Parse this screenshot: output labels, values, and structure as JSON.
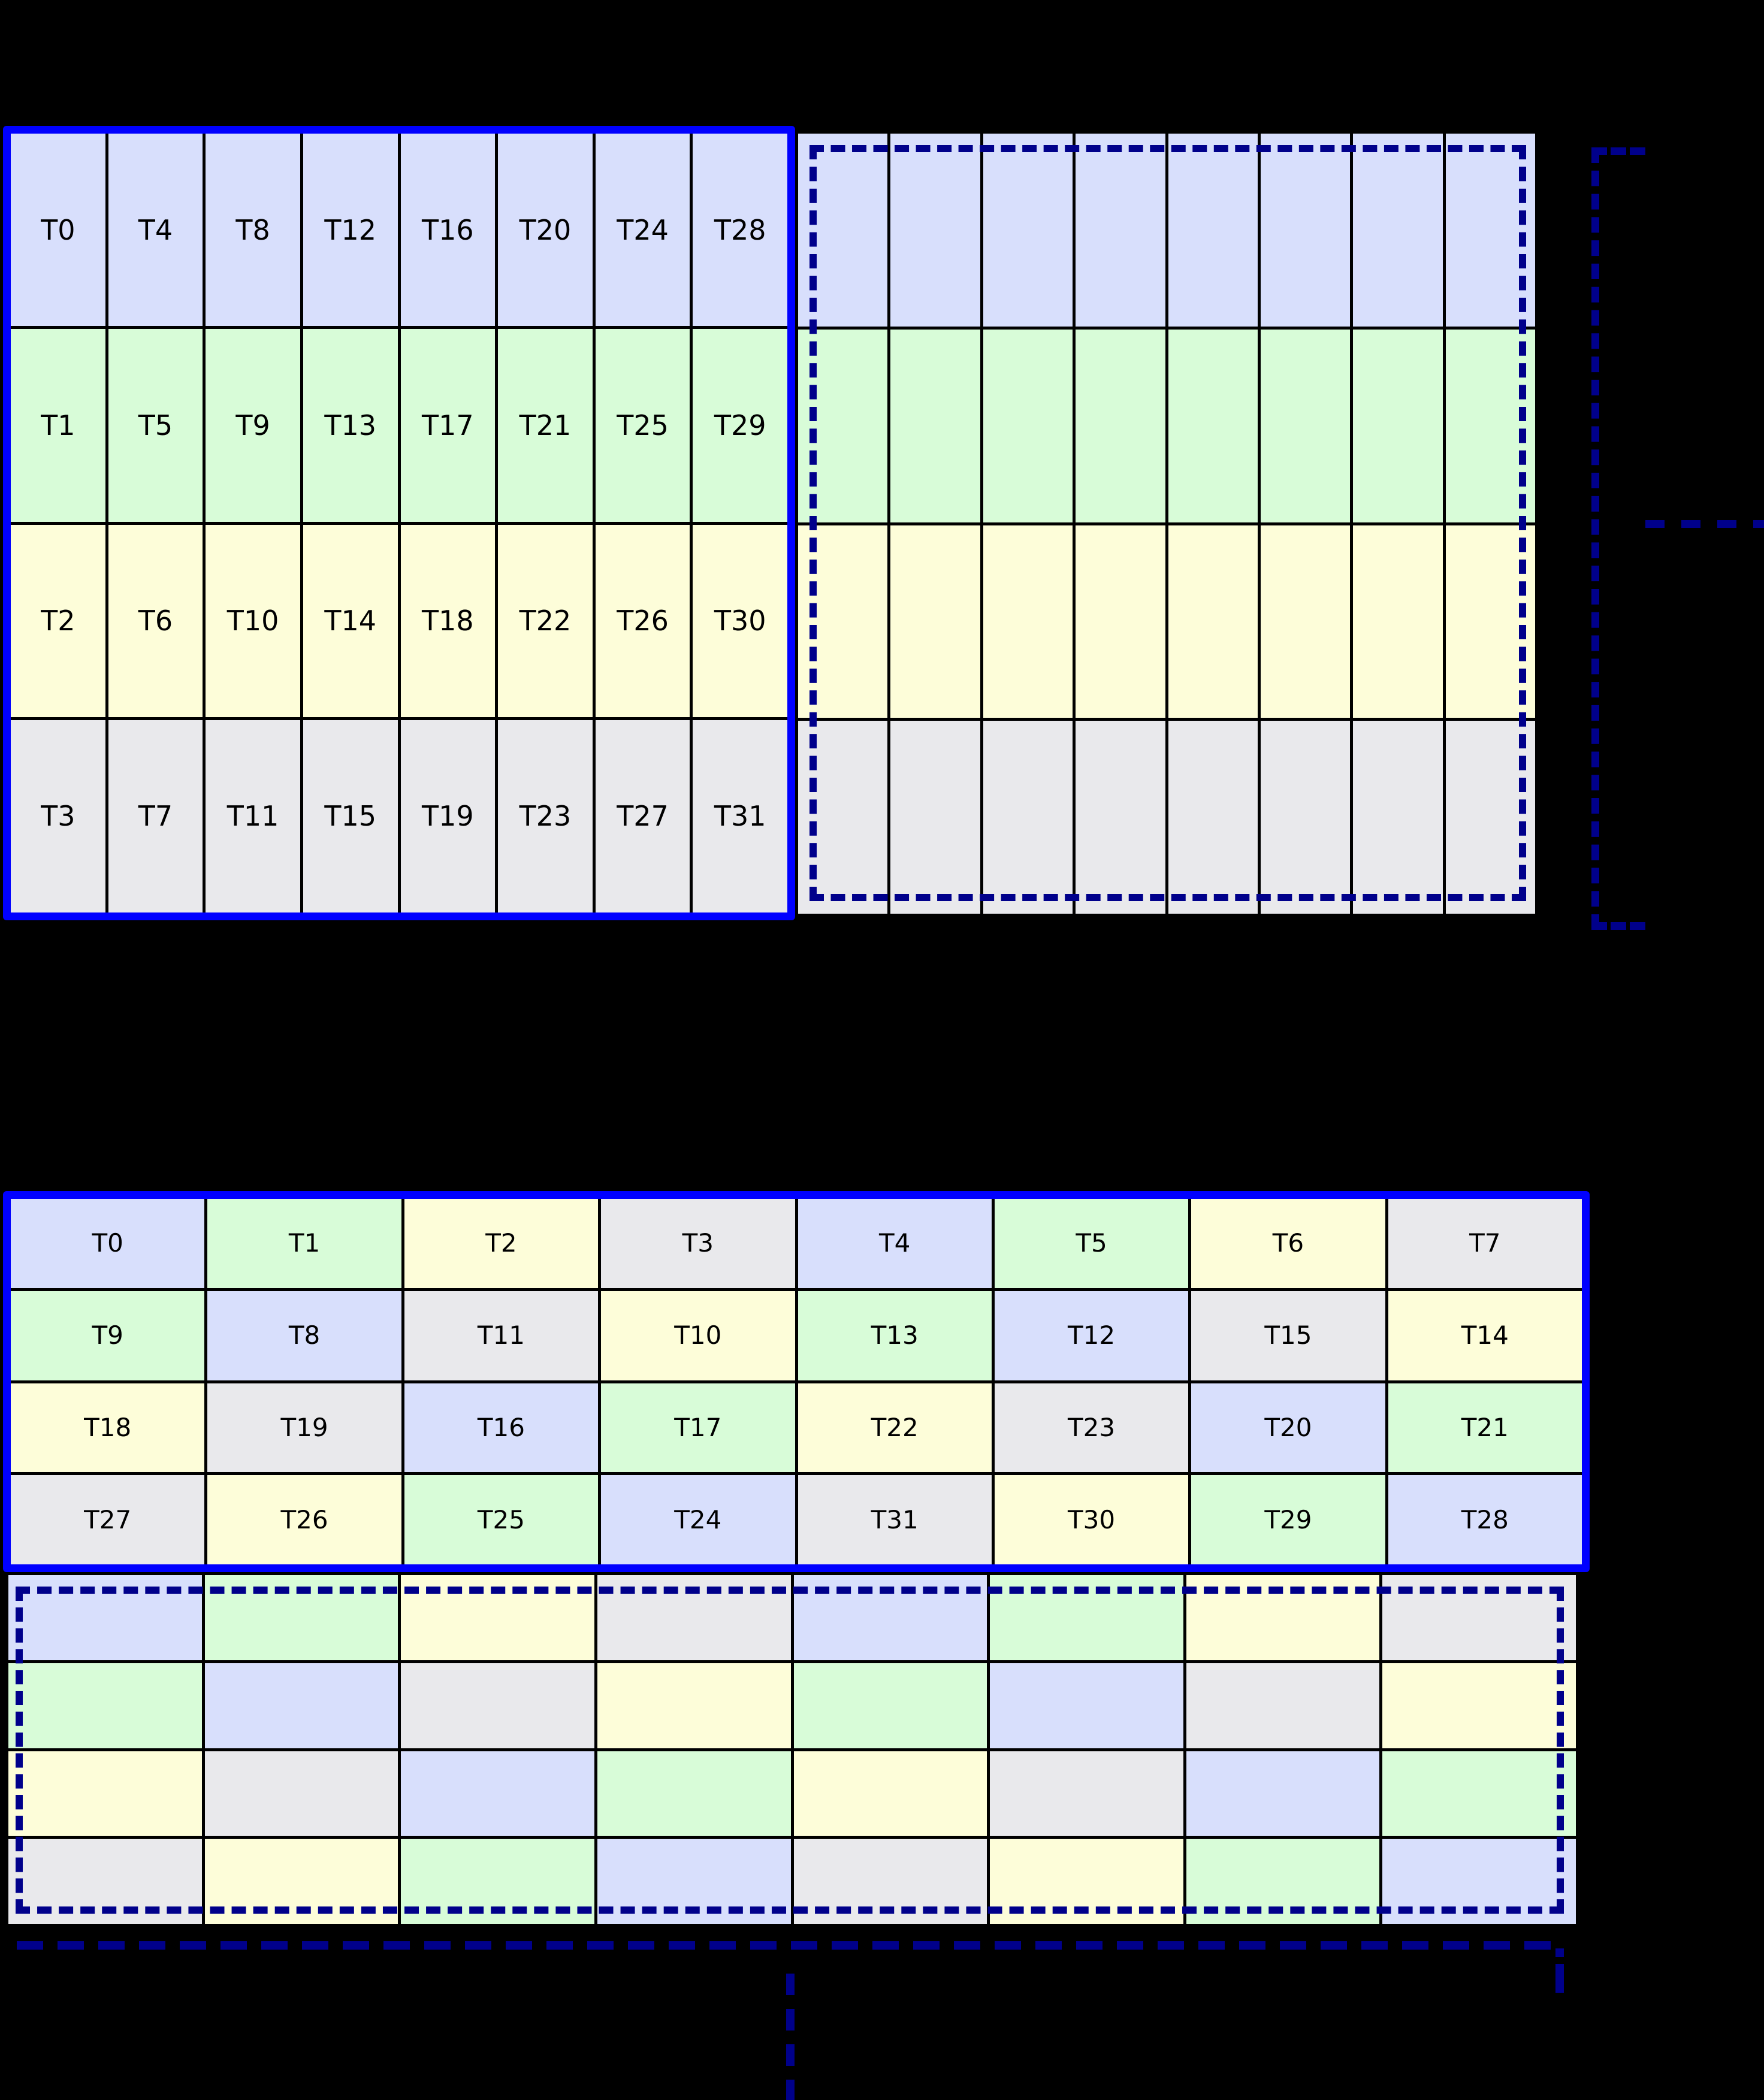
{
  "palette": {
    "background": "#000000",
    "solid_border_blue": "#0000ff",
    "dashed_border_navy": "#00008b",
    "cell_border": "#000000",
    "bank_colors": [
      "#d8dffc",
      "#d8fcd8",
      "#fdfdd9",
      "#e9e9ec"
    ]
  },
  "top_section": {
    "labeled_block": {
      "labels": [
        [
          "T0",
          "T4",
          "T8",
          "T12",
          "T16",
          "T20",
          "T24",
          "T28"
        ],
        [
          "T1",
          "T5",
          "T9",
          "T13",
          "T17",
          "T21",
          "T25",
          "T29"
        ],
        [
          "T2",
          "T6",
          "T10",
          "T14",
          "T18",
          "T22",
          "T26",
          "T30"
        ],
        [
          "T3",
          "T7",
          "T11",
          "T15",
          "T19",
          "T23",
          "T27",
          "T31"
        ]
      ],
      "row_colors": [
        0,
        1,
        2,
        3
      ]
    },
    "unlabeled_block": {
      "rows_count": 4,
      "cols_count": 8,
      "row_colors": [
        0,
        1,
        2,
        3
      ]
    },
    "continuation": "horizontal-dots"
  },
  "bottom_section": {
    "labeled_block": {
      "labels": [
        [
          "T0",
          "T1",
          "T2",
          "T3",
          "T4",
          "T5",
          "T6",
          "T7"
        ],
        [
          "T9",
          "T8",
          "T11",
          "T10",
          "T13",
          "T12",
          "T15",
          "T14"
        ],
        [
          "T18",
          "T19",
          "T16",
          "T17",
          "T22",
          "T23",
          "T20",
          "T21"
        ],
        [
          "T27",
          "T26",
          "T25",
          "T24",
          "T31",
          "T30",
          "T29",
          "T28"
        ]
      ],
      "cell_colors": [
        [
          0,
          1,
          2,
          3,
          0,
          1,
          2,
          3
        ],
        [
          1,
          0,
          3,
          2,
          1,
          0,
          3,
          2
        ],
        [
          2,
          3,
          0,
          1,
          2,
          3,
          0,
          1
        ],
        [
          3,
          2,
          1,
          0,
          3,
          2,
          1,
          0
        ]
      ]
    },
    "unlabeled_block": {
      "rows_count": 4,
      "cols_count": 8,
      "cell_colors": [
        [
          0,
          1,
          2,
          3,
          0,
          1,
          2,
          3
        ],
        [
          1,
          0,
          3,
          2,
          1,
          0,
          3,
          2
        ],
        [
          2,
          3,
          0,
          1,
          2,
          3,
          0,
          1
        ],
        [
          3,
          2,
          1,
          0,
          3,
          2,
          1,
          0
        ]
      ]
    },
    "continuation": "vertical-dots"
  }
}
